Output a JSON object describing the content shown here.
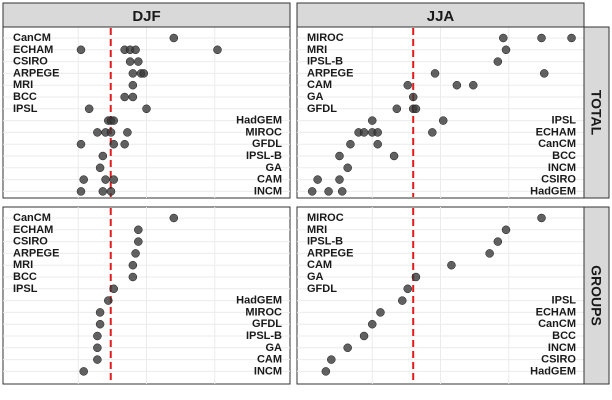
{
  "chart_data": {
    "type": "scatter",
    "columns": [
      "DJF",
      "JJA"
    ],
    "rows": [
      "TOTAL",
      "GROUPS"
    ],
    "xlim": [
      0,
      1
    ],
    "reference_line": {
      "DJF": 0.369,
      "JJA": 0.4
    },
    "panels": [
      {
        "column": "DJF",
        "row": "TOTAL",
        "series": [
          {
            "name": "CanCM",
            "label_side": "left",
            "values": [
              0.6
            ]
          },
          {
            "name": "ECHAM",
            "label_side": "left",
            "values": [
              0.26,
              0.42,
              0.44,
              0.46,
              0.76
            ]
          },
          {
            "name": "CSIRO",
            "label_side": "left",
            "values": [
              0.44,
              0.47
            ]
          },
          {
            "name": "ARPEGE",
            "label_side": "left",
            "values": [
              0.45,
              0.48,
              0.49
            ]
          },
          {
            "name": "MRI",
            "label_side": "left",
            "values": [
              0.45
            ]
          },
          {
            "name": "BCC",
            "label_side": "left",
            "values": [
              0.42,
              0.45
            ]
          },
          {
            "name": "IPSL",
            "label_side": "left",
            "values": [
              0.29,
              0.5
            ]
          },
          {
            "name": "HadGEM",
            "label_side": "right",
            "values": [
              0.36,
              0.37,
              0.38
            ]
          },
          {
            "name": "MIROC",
            "label_side": "right",
            "values": [
              0.32,
              0.35,
              0.37,
              0.43
            ]
          },
          {
            "name": "GFDL",
            "label_side": "right",
            "values": [
              0.26,
              0.38,
              0.42
            ]
          },
          {
            "name": "IPSL-B",
            "label_side": "right",
            "values": [
              0.34
            ]
          },
          {
            "name": "GA",
            "label_side": "right",
            "values": [
              0.33
            ]
          },
          {
            "name": "CAM",
            "label_side": "right",
            "values": [
              0.27,
              0.35,
              0.38
            ]
          },
          {
            "name": "INCM",
            "label_side": "right",
            "values": [
              0.26,
              0.34,
              0.37
            ]
          }
        ]
      },
      {
        "column": "JJA",
        "row": "TOTAL",
        "series": [
          {
            "name": "MIROC",
            "label_side": "left",
            "values": [
              0.73,
              0.87,
              0.98
            ]
          },
          {
            "name": "MRI",
            "label_side": "left",
            "values": [
              0.74
            ]
          },
          {
            "name": "IPSL-B",
            "label_side": "left",
            "values": [
              0.71
            ]
          },
          {
            "name": "ARPEGE",
            "label_side": "left",
            "values": [
              0.48,
              0.88
            ]
          },
          {
            "name": "CAM",
            "label_side": "left",
            "values": [
              0.38,
              0.56,
              0.62
            ]
          },
          {
            "name": "GA",
            "label_side": "left",
            "values": [
              0.4
            ]
          },
          {
            "name": "GFDL",
            "label_side": "left",
            "values": [
              0.34,
              0.4,
              0.41
            ]
          },
          {
            "name": "IPSL",
            "label_side": "right",
            "values": [
              0.25,
              0.51
            ]
          },
          {
            "name": "ECHAM",
            "label_side": "right",
            "values": [
              0.2,
              0.22,
              0.25,
              0.27,
              0.47
            ]
          },
          {
            "name": "CanCM",
            "label_side": "right",
            "values": [
              0.17,
              0.27
            ]
          },
          {
            "name": "BCC",
            "label_side": "right",
            "values": [
              0.13,
              0.33
            ]
          },
          {
            "name": "INCM",
            "label_side": "right",
            "values": [
              0.16
            ]
          },
          {
            "name": "CSIRO",
            "label_side": "right",
            "values": [
              0.13,
              0.05
            ]
          },
          {
            "name": "HadGEM",
            "label_side": "right",
            "values": [
              0.03,
              0.09,
              0.14
            ]
          }
        ]
      },
      {
        "column": "DJF",
        "row": "GROUPS",
        "series": [
          {
            "name": "CanCM",
            "label_side": "left",
            "values": [
              0.6
            ]
          },
          {
            "name": "ECHAM",
            "label_side": "left",
            "values": [
              0.47
            ]
          },
          {
            "name": "CSIRO",
            "label_side": "left",
            "values": [
              0.47
            ]
          },
          {
            "name": "ARPEGE",
            "label_side": "left",
            "values": [
              0.46
            ]
          },
          {
            "name": "MRI",
            "label_side": "left",
            "values": [
              0.45
            ]
          },
          {
            "name": "BCC",
            "label_side": "left",
            "values": [
              0.45
            ]
          },
          {
            "name": "IPSL",
            "label_side": "left",
            "values": [
              0.38
            ]
          },
          {
            "name": "HadGEM",
            "label_side": "right",
            "values": [
              0.36
            ]
          },
          {
            "name": "MIROC",
            "label_side": "right",
            "values": [
              0.33
            ]
          },
          {
            "name": "GFDL",
            "label_side": "right",
            "values": [
              0.33
            ]
          },
          {
            "name": "IPSL-B",
            "label_side": "right",
            "values": [
              0.32
            ]
          },
          {
            "name": "GA",
            "label_side": "right",
            "values": [
              0.32
            ]
          },
          {
            "name": "CAM",
            "label_side": "right",
            "values": [
              0.32
            ]
          },
          {
            "name": "INCM",
            "label_side": "right",
            "values": [
              0.27
            ]
          }
        ]
      },
      {
        "column": "JJA",
        "row": "GROUPS",
        "series": [
          {
            "name": "MIROC",
            "label_side": "left",
            "values": [
              0.87
            ]
          },
          {
            "name": "MRI",
            "label_side": "left",
            "values": [
              0.74
            ]
          },
          {
            "name": "IPSL-B",
            "label_side": "left",
            "values": [
              0.71
            ]
          },
          {
            "name": "ARPEGE",
            "label_side": "left",
            "values": [
              0.68
            ]
          },
          {
            "name": "CAM",
            "label_side": "left",
            "values": [
              0.54
            ]
          },
          {
            "name": "GA",
            "label_side": "left",
            "values": [
              0.41
            ]
          },
          {
            "name": "GFDL",
            "label_side": "left",
            "values": [
              0.38
            ]
          },
          {
            "name": "IPSL",
            "label_side": "right",
            "values": [
              0.36
            ]
          },
          {
            "name": "ECHAM",
            "label_side": "right",
            "values": [
              0.28
            ]
          },
          {
            "name": "CanCM",
            "label_side": "right",
            "values": [
              0.25
            ]
          },
          {
            "name": "BCC",
            "label_side": "right",
            "values": [
              0.22
            ]
          },
          {
            "name": "INCM",
            "label_side": "right",
            "values": [
              0.16
            ]
          },
          {
            "name": "CSIRO",
            "label_side": "right",
            "values": [
              0.1
            ]
          },
          {
            "name": "HadGEM",
            "label_side": "right",
            "values": [
              0.08
            ]
          }
        ]
      }
    ]
  }
}
